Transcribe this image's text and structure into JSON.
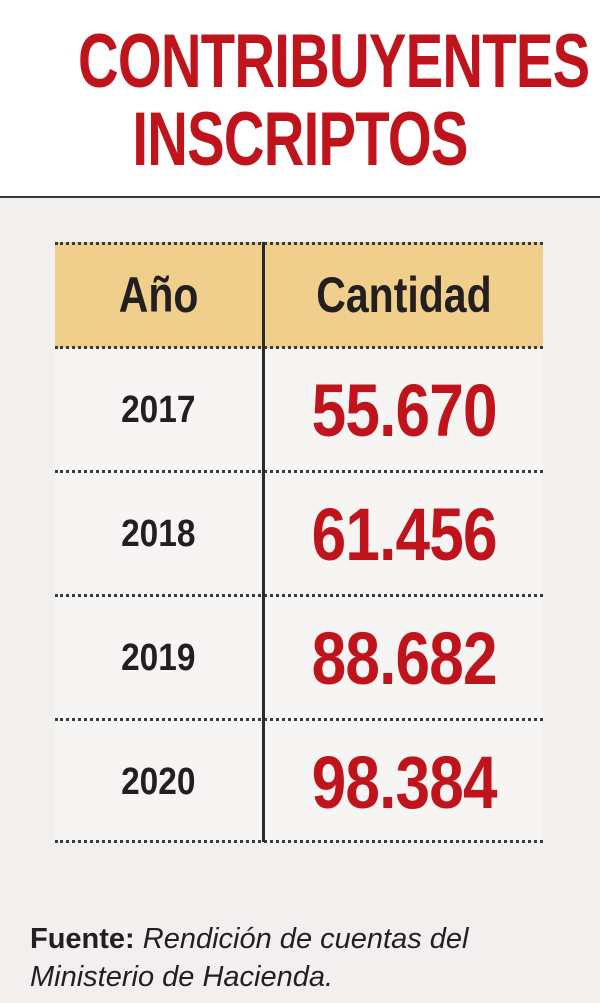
{
  "header": {
    "title_line1": "CONTRIBUYENTES",
    "title_line2": "INSCRIPTOS"
  },
  "colors": {
    "accent_red": "#c0141d",
    "header_row": "#f0cf8d",
    "text_dark": "#231f20"
  },
  "chart_data": {
    "type": "table",
    "columns": [
      "Año",
      "Cantidad"
    ],
    "rows": [
      {
        "year": "2017",
        "value": "55.670"
      },
      {
        "year": "2018",
        "value": "61.456"
      },
      {
        "year": "2019",
        "value": "88.682"
      },
      {
        "year": "2020",
        "value": "98.384"
      }
    ]
  },
  "source": {
    "label": "Fuente:",
    "text_line1": "Rendición de cuentas del",
    "text_line2": "Ministerio de Hacienda."
  }
}
